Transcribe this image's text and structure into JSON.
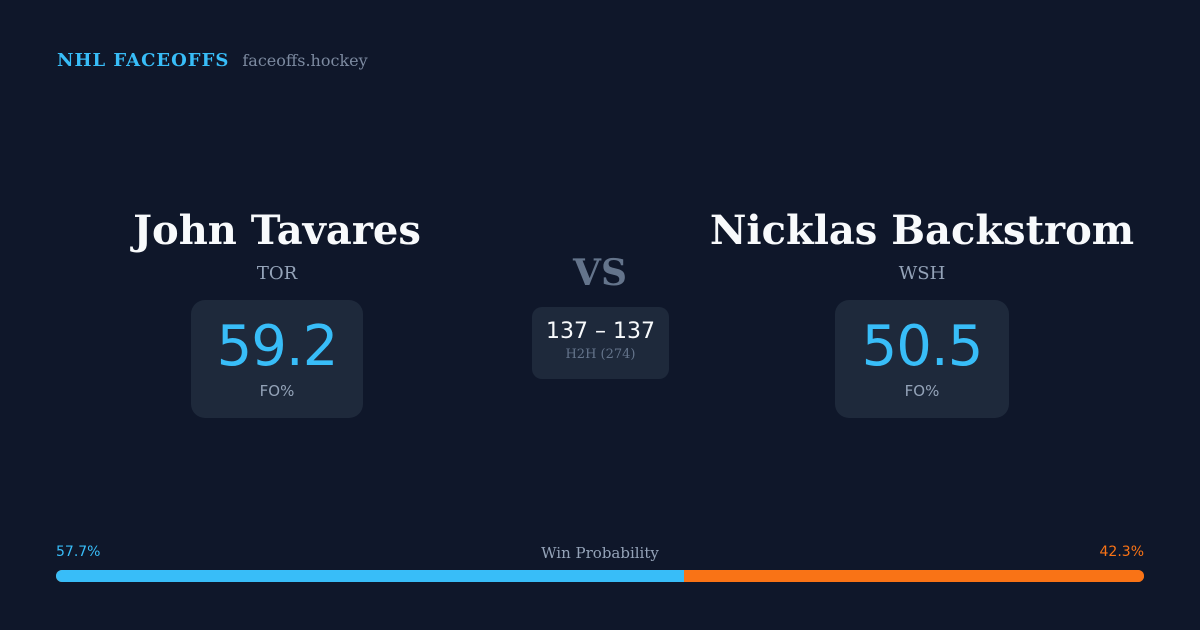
{
  "brand": {
    "name": "NHL FACEOFFS",
    "url": "faceoffs.hockey"
  },
  "players": [
    {
      "name": "John Tavares",
      "team": "TOR",
      "fo_pct": "59.2",
      "fo_label": "FO%"
    },
    {
      "name": "Nicklas Backstrom",
      "team": "WSH",
      "fo_pct": "50.5",
      "fo_label": "FO%"
    }
  ],
  "vs": "VS",
  "h2h": {
    "score": "137 – 137",
    "label": "H2H (274)"
  },
  "win_probability": {
    "title": "Win Probability",
    "left_label": "57.7%",
    "right_label": "42.3%",
    "left_value": 57.7,
    "right_value": 42.3,
    "left_color": "#38bdf8",
    "right_color": "#f97316"
  }
}
